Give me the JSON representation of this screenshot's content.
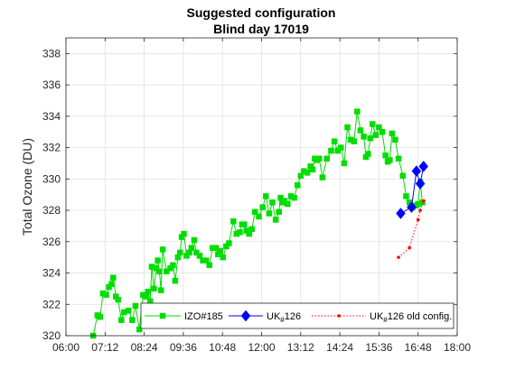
{
  "chart_data": {
    "type": "line",
    "title": "Suggested configuration",
    "subtitle": "Blind day 17019",
    "xlabel": "",
    "ylabel": "Total Ozone (DU)",
    "xlim": [
      "06:00",
      "18:00"
    ],
    "ylim": [
      320,
      339
    ],
    "grid": true,
    "legend_position": "bottom-right",
    "x_ticks": [
      "06:00",
      "07:12",
      "08:24",
      "09:36",
      "10:48",
      "12:00",
      "13:12",
      "14:24",
      "15:36",
      "16:48",
      "18:00"
    ],
    "y_ticks": [
      "320",
      "322",
      "324",
      "326",
      "328",
      "330",
      "332",
      "334",
      "336",
      "338"
    ],
    "series": [
      {
        "name": "IZO#185",
        "color": "#00dd00",
        "marker": "square",
        "line": "solid",
        "points": [
          [
            "06:50",
            320.0
          ],
          [
            "06:58",
            321.3
          ],
          [
            "07:03",
            321.2
          ],
          [
            "07:08",
            322.7
          ],
          [
            "07:14",
            322.6
          ],
          [
            "07:19",
            323.1
          ],
          [
            "07:24",
            323.3
          ],
          [
            "07:27",
            323.7
          ],
          [
            "07:32",
            322.5
          ],
          [
            "07:36",
            322.3
          ],
          [
            "07:42",
            321.0
          ],
          [
            "07:47",
            321.5
          ],
          [
            "07:55",
            321.6
          ],
          [
            "08:02",
            321.0
          ],
          [
            "08:08",
            321.9
          ],
          [
            "08:15",
            320.4
          ],
          [
            "08:22",
            322.6
          ],
          [
            "08:27",
            322.5
          ],
          [
            "08:31",
            322.8
          ],
          [
            "08:35",
            322.2
          ],
          [
            "08:38",
            324.4
          ],
          [
            "08:42",
            323.0
          ],
          [
            "08:46",
            324.3
          ],
          [
            "08:49",
            324.8
          ],
          [
            "08:52",
            324.1
          ],
          [
            "08:55",
            322.9
          ],
          [
            "08:58",
            325.5
          ],
          [
            "09:05",
            324.1
          ],
          [
            "09:12",
            324.3
          ],
          [
            "09:17",
            324.5
          ],
          [
            "09:21",
            323.5
          ],
          [
            "09:26",
            325.0
          ],
          [
            "09:30",
            325.3
          ],
          [
            "09:33",
            326.3
          ],
          [
            "09:37",
            326.5
          ],
          [
            "09:42",
            325.1
          ],
          [
            "09:47",
            325.3
          ],
          [
            "09:51",
            325.6
          ],
          [
            "09:56",
            326.1
          ],
          [
            "10:00",
            325.3
          ],
          [
            "10:06",
            325.1
          ],
          [
            "10:12",
            324.8
          ],
          [
            "10:18",
            324.8
          ],
          [
            "10:24",
            324.5
          ],
          [
            "10:30",
            325.6
          ],
          [
            "10:36",
            325.6
          ],
          [
            "10:40",
            325.2
          ],
          [
            "10:44",
            325.4
          ],
          [
            "10:49",
            325.0
          ],
          [
            "10:55",
            325.7
          ],
          [
            "11:00",
            325.9
          ],
          [
            "11:08",
            327.3
          ],
          [
            "11:14",
            326.5
          ],
          [
            "11:20",
            326.6
          ],
          [
            "11:24",
            327.1
          ],
          [
            "11:28",
            327.1
          ],
          [
            "11:32",
            326.7
          ],
          [
            "11:37",
            326.5
          ],
          [
            "11:42",
            326.8
          ],
          [
            "11:48",
            327.9
          ],
          [
            "11:55",
            327.6
          ],
          [
            "12:02",
            328.2
          ],
          [
            "12:08",
            328.9
          ],
          [
            "12:14",
            327.8
          ],
          [
            "12:20",
            328.5
          ],
          [
            "12:26",
            327.4
          ],
          [
            "12:32",
            327.9
          ],
          [
            "12:35",
            328.8
          ],
          [
            "12:38",
            328.5
          ],
          [
            "12:42",
            328.6
          ],
          [
            "12:48",
            328.4
          ],
          [
            "12:54",
            328.9
          ],
          [
            "13:00",
            328.8
          ],
          [
            "13:06",
            329.6
          ],
          [
            "13:12",
            330.2
          ],
          [
            "13:18",
            330.5
          ],
          [
            "13:24",
            330.4
          ],
          [
            "13:30",
            330.8
          ],
          [
            "13:34",
            330.6
          ],
          [
            "13:38",
            331.3
          ],
          [
            "13:42",
            331.2
          ],
          [
            "13:46",
            331.3
          ],
          [
            "13:52",
            330.1
          ],
          [
            "14:00",
            331.3
          ],
          [
            "14:08",
            331.8
          ],
          [
            "14:14",
            332.4
          ],
          [
            "14:20",
            331.8
          ],
          [
            "14:26",
            332.0
          ],
          [
            "14:32",
            331.0
          ],
          [
            "14:38",
            333.3
          ],
          [
            "14:44",
            332.5
          ],
          [
            "14:50",
            332.4
          ],
          [
            "14:56",
            334.3
          ],
          [
            "15:02",
            333.1
          ],
          [
            "15:08",
            332.7
          ],
          [
            "15:12",
            331.4
          ],
          [
            "15:16",
            331.6
          ],
          [
            "15:20",
            332.6
          ],
          [
            "15:24",
            333.5
          ],
          [
            "15:30",
            332.8
          ],
          [
            "15:36",
            333.3
          ],
          [
            "15:42",
            333.0
          ],
          [
            "15:48",
            331.5
          ],
          [
            "15:52",
            331.1
          ],
          [
            "15:56",
            331.2
          ],
          [
            "16:00",
            332.9
          ],
          [
            "16:06",
            332.5
          ],
          [
            "16:12",
            331.3
          ],
          [
            "16:20",
            330.2
          ],
          [
            "16:26",
            328.9
          ],
          [
            "16:32",
            328.5
          ],
          [
            "16:38",
            328.2
          ],
          [
            "16:44",
            328.3
          ],
          [
            "16:48",
            328.4
          ],
          [
            "16:52",
            329.8
          ],
          [
            "16:56",
            328.5
          ]
        ]
      },
      {
        "name": "UK#126",
        "color": "#0000ff",
        "marker": "diamond",
        "line": "solid",
        "points": [
          [
            "16:16",
            327.8
          ],
          [
            "16:36",
            328.2
          ],
          [
            "16:45",
            330.5
          ],
          [
            "16:52",
            329.7
          ],
          [
            "16:58",
            330.8
          ]
        ]
      },
      {
        "name": "UK#126 old config.",
        "color": "#ff0000",
        "marker": "dot",
        "line": "dotted",
        "points": [
          [
            "16:12",
            325.0
          ],
          [
            "16:32",
            325.6
          ],
          [
            "16:48",
            327.4
          ],
          [
            "16:52",
            328.0
          ],
          [
            "16:58",
            328.6
          ]
        ]
      }
    ],
    "legend": [
      {
        "main": "IZO#185",
        "sub": "",
        "tail": ""
      },
      {
        "main": "UK",
        "sub": "#",
        "tail": "126"
      },
      {
        "main": "UK",
        "sub": "#",
        "tail": "126 old config."
      }
    ]
  }
}
